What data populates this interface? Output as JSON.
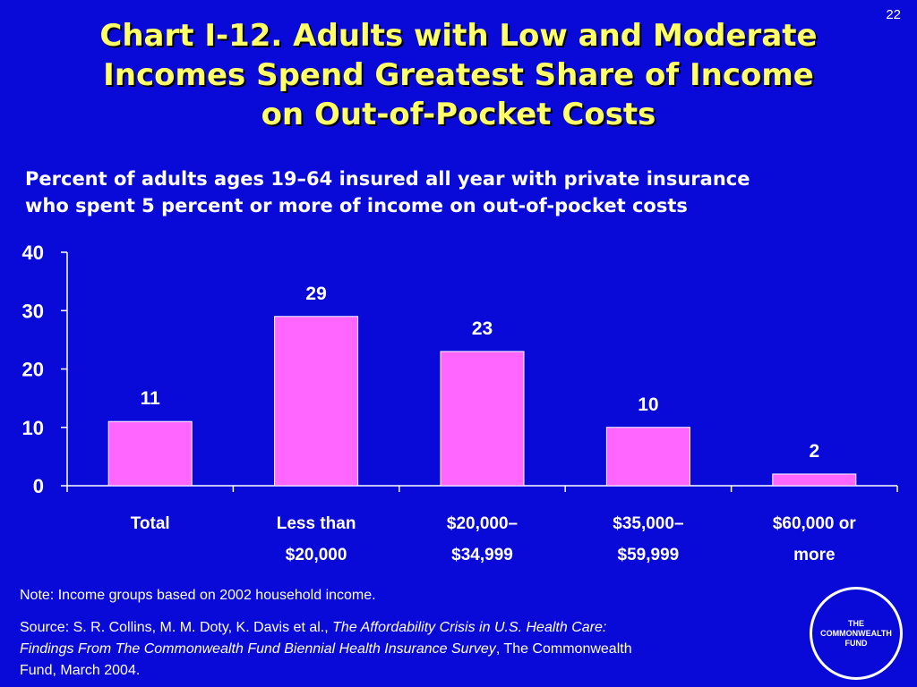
{
  "page_number": "22",
  "title_lines": [
    "Chart I-12. Adults with Low and Moderate",
    "Incomes Spend Greatest Share of Income",
    "on Out-of-Pocket Costs"
  ],
  "subtitle_lines": [
    "Percent of adults ages 19–64 insured all year with private insurance",
    "who spent 5 percent or more of income on out-of-pocket costs"
  ],
  "colors": {
    "background": "#0a0ad8",
    "title": "#ffff66",
    "bar": "#ff66ff"
  },
  "chart_data": {
    "type": "bar",
    "title": "",
    "xlabel": "",
    "ylabel": "",
    "ylim": [
      0,
      40
    ],
    "yticks": [
      0,
      10,
      20,
      30,
      40
    ],
    "categories": [
      [
        "Total"
      ],
      [
        "Less than",
        "$20,000"
      ],
      [
        "$20,000–",
        "$34,999"
      ],
      [
        "$35,000–",
        "$59,999"
      ],
      [
        "$60,000 or",
        "more"
      ]
    ],
    "values": [
      11,
      29,
      23,
      10,
      2
    ],
    "data_labels": [
      "11",
      "29",
      "23",
      "10",
      "2"
    ]
  },
  "note": "Note: Income groups based on 2002 household income.",
  "source": {
    "prefix": "Source: S. R. Collins, M. M. Doty, K. Davis et al., ",
    "italic": "The Affordability Crisis in U.S. Health Care: Findings From The Commonwealth Fund Biennial Health Insurance Survey",
    "suffix": ", The Commonwealth Fund, March 2004."
  },
  "logo_lines": [
    "THE",
    "COMMONWEALTH",
    "FUND"
  ]
}
